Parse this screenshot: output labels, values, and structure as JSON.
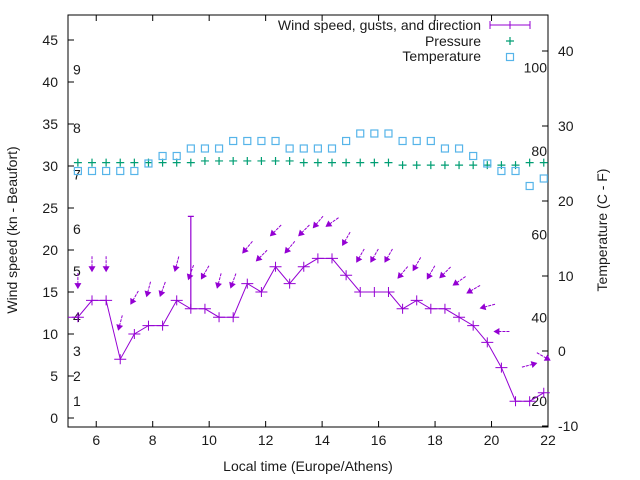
{
  "chart_data": {
    "type": "line",
    "xlabel": "Local time (Europe/Athens)",
    "ylabel": "Wind speed (kn - Beaufort)",
    "y2label": "Temperature (C - F)",
    "xlim": [
      5,
      22
    ],
    "ylim": [
      -1.5,
      48
    ],
    "y2lim": [
      -10,
      45
    ],
    "xticks": [
      6,
      8,
      10,
      12,
      14,
      16,
      18,
      20,
      22
    ],
    "yticks": [
      0,
      5,
      10,
      15,
      20,
      25,
      30,
      35,
      40,
      45
    ],
    "y2ticks": [
      -10,
      0,
      10,
      20,
      30,
      40
    ],
    "beaufort_labels": [
      {
        "label": "1",
        "kn": 2
      },
      {
        "label": "2",
        "kn": 5
      },
      {
        "label": "3",
        "kn": 8
      },
      {
        "label": "4",
        "kn": 12
      },
      {
        "label": "5",
        "kn": 17.5
      },
      {
        "label": "6",
        "kn": 22.5
      },
      {
        "label": "7",
        "kn": 29
      },
      {
        "label": "8",
        "kn": 34.5
      },
      {
        "label": "9",
        "kn": 41.5
      }
    ],
    "fahrenheit_labels": [
      {
        "label": "20",
        "F": 20
      },
      {
        "label": "40",
        "F": 40
      },
      {
        "label": "60",
        "F": 60
      },
      {
        "label": "80",
        "F": 80
      },
      {
        "label": "100",
        "F": 100
      }
    ],
    "legend": {
      "position": "top-right",
      "entries": [
        "Wind speed, gusts, and direction",
        "Pressure",
        "Temperature"
      ]
    },
    "grid": false,
    "x": [
      5.35,
      5.85,
      6.35,
      6.85,
      7.35,
      7.85,
      8.35,
      8.85,
      9.35,
      9.85,
      10.35,
      10.85,
      11.35,
      11.85,
      12.35,
      12.85,
      13.35,
      13.85,
      14.35,
      14.85,
      15.35,
      15.85,
      16.35,
      16.85,
      17.35,
      17.85,
      18.35,
      18.85,
      19.35,
      19.85,
      20.35,
      20.85,
      21.35,
      21.85
    ],
    "series": [
      {
        "name": "Wind speed, gusts, and direction",
        "color": "#9400d3",
        "values": [
          12,
          14,
          14,
          7,
          10,
          11,
          11,
          14,
          13,
          13,
          12,
          12,
          16,
          15,
          18,
          16,
          18,
          19,
          19,
          17,
          15,
          15,
          15,
          13,
          14,
          13,
          13,
          12,
          11,
          9,
          6,
          2,
          2,
          3
        ],
        "gusts": [
          null,
          null,
          null,
          null,
          null,
          null,
          null,
          null,
          24,
          null,
          null,
          null,
          null,
          null,
          null,
          null,
          null,
          null,
          null,
          null,
          null,
          null,
          null,
          null,
          null,
          null,
          null,
          null,
          null,
          null,
          null,
          null,
          null,
          null
        ],
        "direction_from_deg": [
          0,
          0,
          0,
          15,
          30,
          15,
          20,
          15,
          20,
          30,
          15,
          20,
          40,
          45,
          45,
          40,
          45,
          40,
          55,
          30,
          30,
          30,
          30,
          40,
          30,
          30,
          45,
          55,
          60,
          75,
          90,
          null,
          255,
          300
        ],
        "start_value": 12
      },
      {
        "name": "Pressure",
        "color": "#009e73",
        "axis": "left",
        "values": [
          30.4,
          30.4,
          30.4,
          30.4,
          30.4,
          30.4,
          30.4,
          30.4,
          30.4,
          30.6,
          30.6,
          30.6,
          30.6,
          30.6,
          30.6,
          30.6,
          30.4,
          30.4,
          30.4,
          30.4,
          30.4,
          30.4,
          30.4,
          30.1,
          30.1,
          30.1,
          30.1,
          30.1,
          30.1,
          30.1,
          30.1,
          30.1,
          30.4,
          30.4
        ]
      },
      {
        "name": "Temperature",
        "color": "#56b4e9",
        "axis": "right",
        "unit": "C",
        "values": [
          24,
          24,
          24,
          24,
          24,
          25,
          26,
          26,
          27,
          27,
          27,
          28,
          28,
          28,
          28,
          27,
          27,
          27,
          27,
          28,
          29,
          29,
          29,
          28,
          28,
          28,
          27,
          27,
          26,
          25,
          24,
          24,
          22,
          23
        ]
      }
    ]
  }
}
